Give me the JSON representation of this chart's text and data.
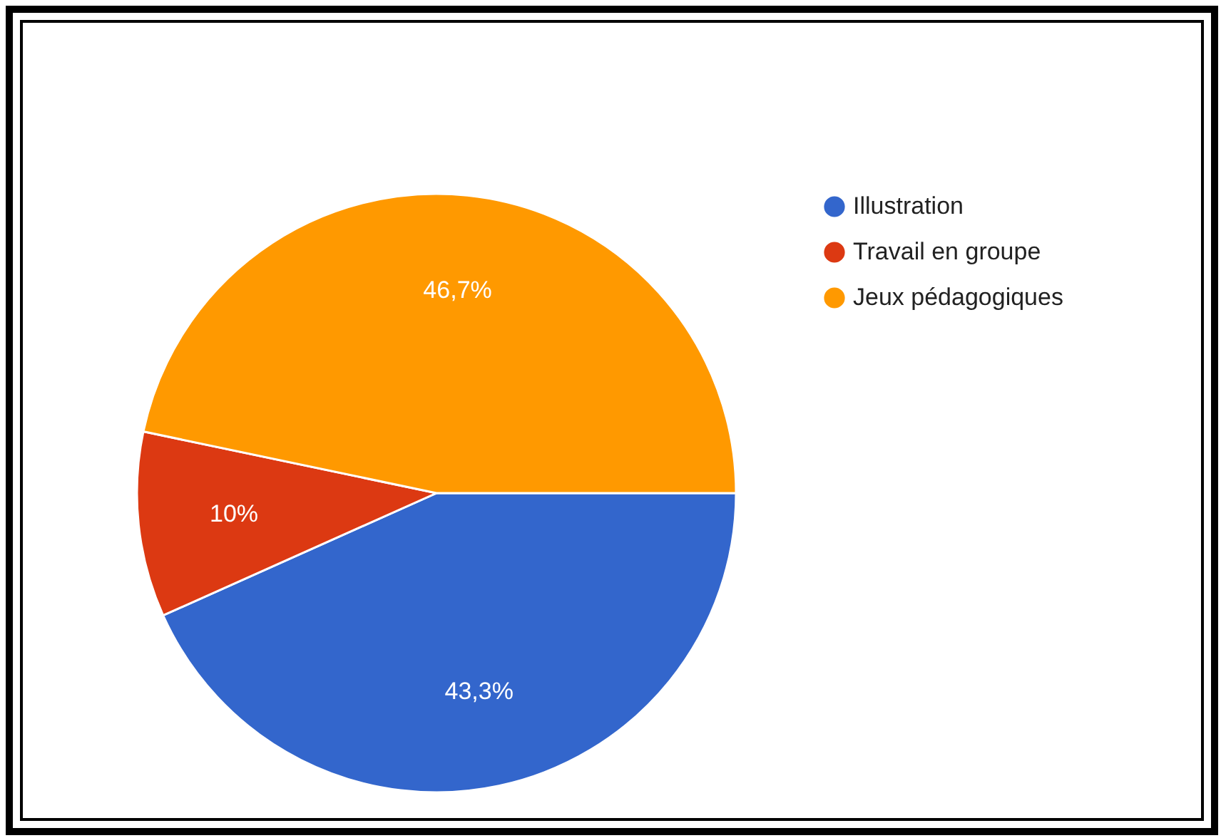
{
  "chart_data": {
    "type": "pie",
    "categories": [
      "Illustration",
      "Travail en groupe",
      "Jeux pédagogiques"
    ],
    "values": [
      43.3,
      10,
      46.7
    ],
    "colors": [
      "#3366cc",
      "#dc3912",
      "#ff9900"
    ],
    "value_labels": [
      "43,3%",
      "10%",
      "46,7%"
    ],
    "legend": "top right"
  }
}
